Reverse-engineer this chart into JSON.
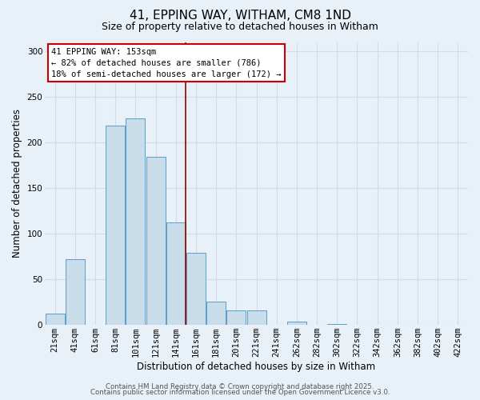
{
  "title": "41, EPPING WAY, WITHAM, CM8 1ND",
  "subtitle": "Size of property relative to detached houses in Witham",
  "xlabel": "Distribution of detached houses by size in Witham",
  "ylabel": "Number of detached properties",
  "bar_labels": [
    "21sqm",
    "41sqm",
    "61sqm",
    "81sqm",
    "101sqm",
    "121sqm",
    "141sqm",
    "161sqm",
    "181sqm",
    "201sqm",
    "221sqm",
    "241sqm",
    "262sqm",
    "282sqm",
    "302sqm",
    "322sqm",
    "342sqm",
    "362sqm",
    "382sqm",
    "402sqm",
    "422sqm"
  ],
  "bar_values": [
    12,
    72,
    0,
    218,
    226,
    184,
    112,
    79,
    26,
    16,
    16,
    0,
    4,
    0,
    1,
    0,
    0,
    0,
    0,
    0,
    0
  ],
  "bar_color": "#c9dcea",
  "bar_edge_color": "#5b9dca",
  "ylim": [
    0,
    310
  ],
  "yticks": [
    0,
    50,
    100,
    150,
    200,
    250,
    300
  ],
  "annotation_title": "41 EPPING WAY: 153sqm",
  "annotation_line1": "← 82% of detached houses are smaller (786)",
  "annotation_line2": "18% of semi-detached houses are larger (172) →",
  "annotation_box_color": "#ffffff",
  "annotation_box_edge": "#cc0000",
  "vertical_line_color": "#990000",
  "footer1": "Contains HM Land Registry data © Crown copyright and database right 2025.",
  "footer2": "Contains public sector information licensed under the Open Government Licence v3.0.",
  "background_color": "#e8f0f8",
  "grid_color": "#d0dce8",
  "title_fontsize": 11,
  "subtitle_fontsize": 9,
  "axis_label_fontsize": 8.5,
  "tick_fontsize": 7.5,
  "annotation_fontsize": 7.5,
  "footer_fontsize": 6.2
}
